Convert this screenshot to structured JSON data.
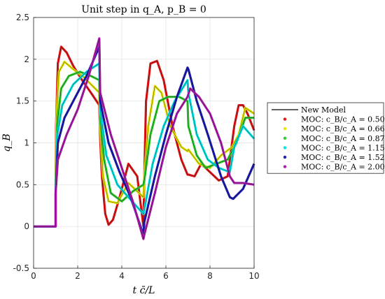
{
  "chart_data": {
    "type": "line",
    "title": "Unit step in q_A, p_B = 0",
    "xlabel": "t c̄/L",
    "ylabel": "q_B",
    "xlim": [
      0,
      10
    ],
    "ylim": [
      -0.5,
      2.5
    ],
    "xticks": [
      0,
      2,
      4,
      6,
      8,
      10
    ],
    "yticks": [
      -0.5,
      0,
      0.5,
      1,
      1.5,
      2,
      2.5
    ],
    "grid": true,
    "legend_position": "right",
    "series": [
      {
        "name": "MOC: c_B/c_A = 0.50",
        "color": "#e41a1c",
        "points": [
          [
            0,
            0
          ],
          [
            1,
            0
          ],
          [
            1,
            0.4
          ],
          [
            1.02,
            1.2
          ],
          [
            1.1,
            1.95
          ],
          [
            1.25,
            2.15
          ],
          [
            1.5,
            2.08
          ],
          [
            1.8,
            1.92
          ],
          [
            2.2,
            1.75
          ],
          [
            2.6,
            1.6
          ],
          [
            2.98,
            1.45
          ],
          [
            3.02,
            1.05
          ],
          [
            3.1,
            0.6
          ],
          [
            3.25,
            0.15
          ],
          [
            3.4,
            0.02
          ],
          [
            3.6,
            0.08
          ],
          [
            3.9,
            0.35
          ],
          [
            4.3,
            0.75
          ],
          [
            4.7,
            0.6
          ],
          [
            4.98,
            0.0
          ],
          [
            5.02,
            0.6
          ],
          [
            5.1,
            1.5
          ],
          [
            5.3,
            1.95
          ],
          [
            5.6,
            1.98
          ],
          [
            5.9,
            1.75
          ],
          [
            6.3,
            1.2
          ],
          [
            6.7,
            0.8
          ],
          [
            6.98,
            0.62
          ],
          [
            7.02,
            0.62
          ],
          [
            7.3,
            0.6
          ],
          [
            7.6,
            0.75
          ],
          [
            8.0,
            0.65
          ],
          [
            8.4,
            0.55
          ],
          [
            8.8,
            0.6
          ],
          [
            9.1,
            1.2
          ],
          [
            9.3,
            1.45
          ],
          [
            9.5,
            1.45
          ],
          [
            9.7,
            1.35
          ],
          [
            10,
            1.15
          ]
        ]
      },
      {
        "name": "MOC: c_B/c_A = 0.66",
        "color": "#e6e600",
        "points": [
          [
            0,
            0
          ],
          [
            1,
            0
          ],
          [
            1,
            0.4
          ],
          [
            1.04,
            1.3
          ],
          [
            1.15,
            1.85
          ],
          [
            1.4,
            1.97
          ],
          [
            1.8,
            1.88
          ],
          [
            2.3,
            1.78
          ],
          [
            2.98,
            1.6
          ],
          [
            3.02,
            1.2
          ],
          [
            3.15,
            0.6
          ],
          [
            3.4,
            0.3
          ],
          [
            3.8,
            0.28
          ],
          [
            4.3,
            0.52
          ],
          [
            4.98,
            0.35
          ],
          [
            5.02,
            0.6
          ],
          [
            5.2,
            1.2
          ],
          [
            5.5,
            1.68
          ],
          [
            5.8,
            1.6
          ],
          [
            6.2,
            1.2
          ],
          [
            6.7,
            0.95
          ],
          [
            6.98,
            0.9
          ],
          [
            7.02,
            0.92
          ],
          [
            7.5,
            0.75
          ],
          [
            8.0,
            0.7
          ],
          [
            8.5,
            0.85
          ],
          [
            9.0,
            0.95
          ],
          [
            9.3,
            1.1
          ],
          [
            9.6,
            1.42
          ],
          [
            10,
            1.35
          ]
        ]
      },
      {
        "name": "MOC: c_B/c_A = 0.87",
        "color": "#33cc33",
        "points": [
          [
            0,
            0
          ],
          [
            1,
            0
          ],
          [
            1,
            0.4
          ],
          [
            1.06,
            1.2
          ],
          [
            1.25,
            1.65
          ],
          [
            1.6,
            1.8
          ],
          [
            2.1,
            1.85
          ],
          [
            2.6,
            1.8
          ],
          [
            2.98,
            1.75
          ],
          [
            3.02,
            1.3
          ],
          [
            3.2,
            0.8
          ],
          [
            3.5,
            0.4
          ],
          [
            4.0,
            0.3
          ],
          [
            4.5,
            0.42
          ],
          [
            4.98,
            0.5
          ],
          [
            5.02,
            0.55
          ],
          [
            5.3,
            1.1
          ],
          [
            5.7,
            1.5
          ],
          [
            6.1,
            1.55
          ],
          [
            6.6,
            1.55
          ],
          [
            6.98,
            1.5
          ],
          [
            7.02,
            1.2
          ],
          [
            7.4,
            0.85
          ],
          [
            7.8,
            0.7
          ],
          [
            8.3,
            0.75
          ],
          [
            8.8,
            0.8
          ],
          [
            9.2,
            1.0
          ],
          [
            9.6,
            1.3
          ],
          [
            10,
            1.3
          ]
        ]
      },
      {
        "name": "MOC: c_B/c_A = 1.15",
        "color": "#00e5e5",
        "points": [
          [
            0,
            0
          ],
          [
            1,
            0
          ],
          [
            1,
            0.4
          ],
          [
            1.08,
            1.1
          ],
          [
            1.3,
            1.45
          ],
          [
            1.8,
            1.7
          ],
          [
            2.4,
            1.85
          ],
          [
            2.98,
            1.95
          ],
          [
            3.02,
            1.4
          ],
          [
            3.3,
            0.85
          ],
          [
            3.8,
            0.5
          ],
          [
            4.3,
            0.35
          ],
          [
            4.98,
            0.15
          ],
          [
            5.02,
            0.2
          ],
          [
            5.4,
            0.75
          ],
          [
            5.9,
            1.2
          ],
          [
            6.4,
            1.5
          ],
          [
            6.98,
            1.75
          ],
          [
            7.02,
            1.6
          ],
          [
            7.4,
            1.1
          ],
          [
            7.9,
            0.8
          ],
          [
            8.4,
            0.7
          ],
          [
            8.9,
            0.65
          ],
          [
            9.1,
            0.95
          ],
          [
            9.5,
            1.2
          ],
          [
            10,
            1.05
          ]
        ]
      },
      {
        "name": "MOC: c_B/c_A = 1.52",
        "color": "#1f1fb4",
        "points": [
          [
            0,
            0
          ],
          [
            1,
            0
          ],
          [
            1,
            0.4
          ],
          [
            1.1,
            1.0
          ],
          [
            1.4,
            1.3
          ],
          [
            1.9,
            1.55
          ],
          [
            2.4,
            1.8
          ],
          [
            2.98,
            2.15
          ],
          [
            3.02,
            1.5
          ],
          [
            3.4,
            1.0
          ],
          [
            3.9,
            0.65
          ],
          [
            4.4,
            0.35
          ],
          [
            4.98,
            -0.1
          ],
          [
            5.02,
            0.05
          ],
          [
            5.5,
            0.6
          ],
          [
            6.0,
            1.1
          ],
          [
            6.5,
            1.55
          ],
          [
            6.98,
            1.9
          ],
          [
            7.02,
            1.88
          ],
          [
            7.4,
            1.5
          ],
          [
            7.9,
            1.1
          ],
          [
            8.5,
            0.6
          ],
          [
            8.9,
            0.35
          ],
          [
            9.05,
            0.33
          ],
          [
            9.5,
            0.45
          ],
          [
            10,
            0.75
          ]
        ]
      },
      {
        "name": "MOC: c_B/c_A = 2.00",
        "color": "#b020b0",
        "points": [
          [
            0,
            0
          ],
          [
            1,
            0
          ],
          [
            1,
            0.4
          ],
          [
            1.1,
            0.8
          ],
          [
            1.5,
            1.1
          ],
          [
            2.0,
            1.4
          ],
          [
            2.5,
            1.8
          ],
          [
            2.98,
            2.25
          ],
          [
            3.02,
            1.6
          ],
          [
            3.5,
            1.1
          ],
          [
            4.0,
            0.7
          ],
          [
            4.5,
            0.3
          ],
          [
            4.98,
            -0.15
          ],
          [
            5.02,
            -0.1
          ],
          [
            5.5,
            0.4
          ],
          [
            6.0,
            0.95
          ],
          [
            6.5,
            1.35
          ],
          [
            6.98,
            1.55
          ],
          [
            7.1,
            1.65
          ],
          [
            7.5,
            1.55
          ],
          [
            8.0,
            1.35
          ],
          [
            8.5,
            1.0
          ],
          [
            8.9,
            0.6
          ],
          [
            9.1,
            0.52
          ],
          [
            9.5,
            0.52
          ],
          [
            10,
            0.5
          ]
        ]
      }
    ],
    "new_model_name": "New Model",
    "legend_labels": [
      "New Model",
      "MOC: c_B/c_A = 0.50",
      "MOC: c_B/c_A = 0.66",
      "MOC: c_B/c_A = 0.87",
      "MOC: c_B/c_A = 1.15",
      "MOC: c_B/c_A = 1.52",
      "MOC: c_B/c_A = 2.00"
    ]
  }
}
